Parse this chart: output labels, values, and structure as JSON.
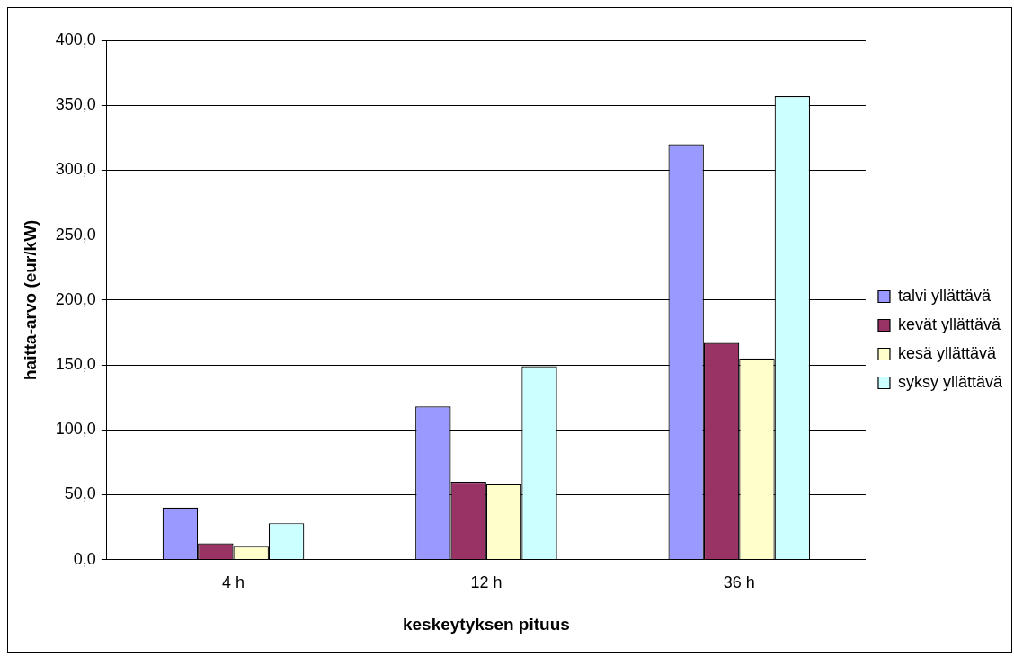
{
  "chart_data": {
    "type": "bar",
    "xlabel": "keskeytyksen pituus",
    "ylabel": "haitta-arvo (eur/kW)",
    "categories": [
      "4 h",
      "12 h",
      "36 h"
    ],
    "series": [
      {
        "name": "talvi yllättävä",
        "color": "#9999ff",
        "values": [
          40,
          118,
          320
        ]
      },
      {
        "name": "kevät yllättävä",
        "color": "#993366",
        "values": [
          12.5,
          60,
          167
        ]
      },
      {
        "name": "kesä yllättävä",
        "color": "#ffffcc",
        "values": [
          10,
          58,
          155
        ]
      },
      {
        "name": "syksy yllättävä",
        "color": "#ccffff",
        "values": [
          28,
          149,
          357
        ]
      }
    ],
    "ylim": [
      0,
      400
    ],
    "yticks": [
      {
        "value": 0,
        "label": "0,0"
      },
      {
        "value": 50,
        "label": "50,0"
      },
      {
        "value": 100,
        "label": "100,0"
      },
      {
        "value": 150,
        "label": "150,0"
      },
      {
        "value": 200,
        "label": "200,0"
      },
      {
        "value": 250,
        "label": "250,0"
      },
      {
        "value": 300,
        "label": "300,0"
      },
      {
        "value": 350,
        "label": "350,0"
      },
      {
        "value": 400,
        "label": "400,0"
      }
    ],
    "grid": "y",
    "legend": "right"
  }
}
